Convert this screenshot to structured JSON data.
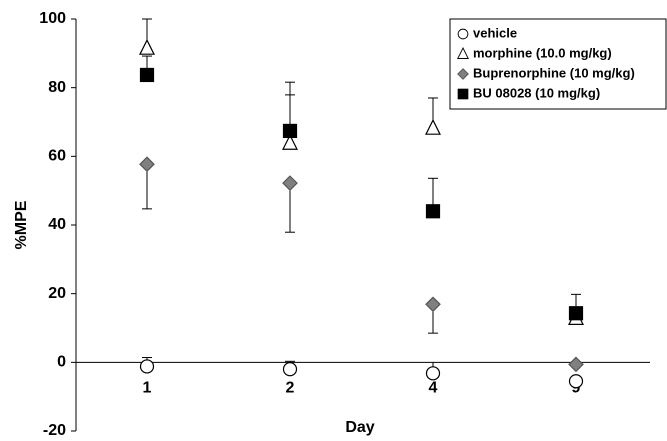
{
  "chart_data": {
    "type": "scatter",
    "x_label": "Day",
    "y_label": "%MPE",
    "categories": [
      "1",
      "2",
      "4",
      "9"
    ],
    "ylim": [
      -20,
      100
    ],
    "yticks": [
      -20,
      0,
      20,
      40,
      60,
      80,
      100
    ],
    "legend": "upper right",
    "series": [
      {
        "name": "vehicle",
        "marker": "circle",
        "color": "#ffffff",
        "error_direction": "up",
        "values": [
          -1.2,
          -2,
          -3.2,
          -5.5
        ],
        "errors": [
          2.6,
          2.3,
          null,
          null
        ]
      },
      {
        "name": "morphine (10.0 mg/kg)",
        "marker": "triangle",
        "color": "#ffffff",
        "error_direction": "up",
        "values": [
          91.5,
          63.8,
          68.2,
          12.8
        ],
        "errors": [
          8.5,
          17.8,
          8.8,
          null
        ]
      },
      {
        "name": "Buprenorphine (10 mg/kg)",
        "marker": "diamond",
        "color": "#808080",
        "error_direction": "down",
        "values": [
          57.7,
          52.2,
          16.9,
          -0.6
        ],
        "errors": [
          13,
          14.3,
          8.4,
          null
        ]
      },
      {
        "name": "BU 08028 (10 mg/kg)",
        "marker": "square",
        "color": "#000000",
        "error_direction": "up",
        "values": [
          83.7,
          67.4,
          44,
          14.3
        ],
        "errors": [
          5.5,
          10.5,
          9.6,
          5.5
        ]
      }
    ]
  }
}
